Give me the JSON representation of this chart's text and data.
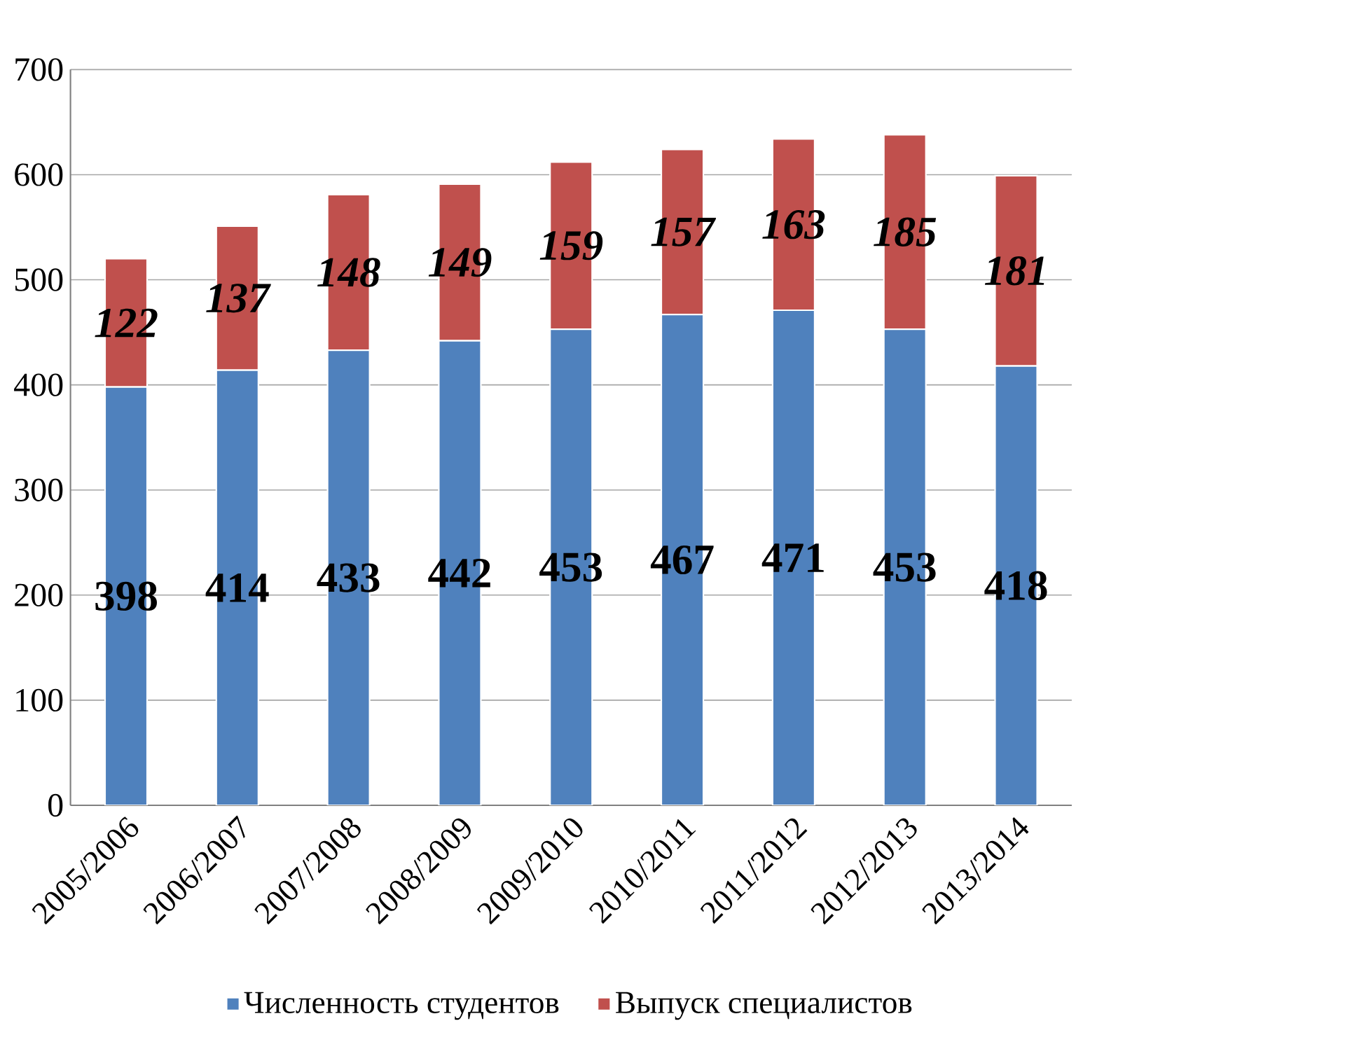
{
  "chart_data": {
    "type": "bar",
    "stacked": true,
    "categories": [
      "2005/2006",
      "2006/2007",
      "2007/2008",
      "2008/2009",
      "2009/2010",
      "2010/2011",
      "2011/2012",
      "2012/2013",
      "2013/2014"
    ],
    "series": [
      {
        "name": "Численность студентов",
        "color": "#4f81bd",
        "values": [
          398,
          414,
          433,
          442,
          453,
          467,
          471,
          453,
          418
        ]
      },
      {
        "name": "Выпуск специалистов",
        "color": "#c0504d",
        "values": [
          122,
          137,
          148,
          149,
          159,
          157,
          163,
          185,
          181
        ]
      }
    ],
    "ylim": [
      0,
      700
    ],
    "yticks": [
      0,
      100,
      200,
      300,
      400,
      500,
      600,
      700
    ],
    "grid": "y",
    "legend": "bottom",
    "data_labels": true
  }
}
